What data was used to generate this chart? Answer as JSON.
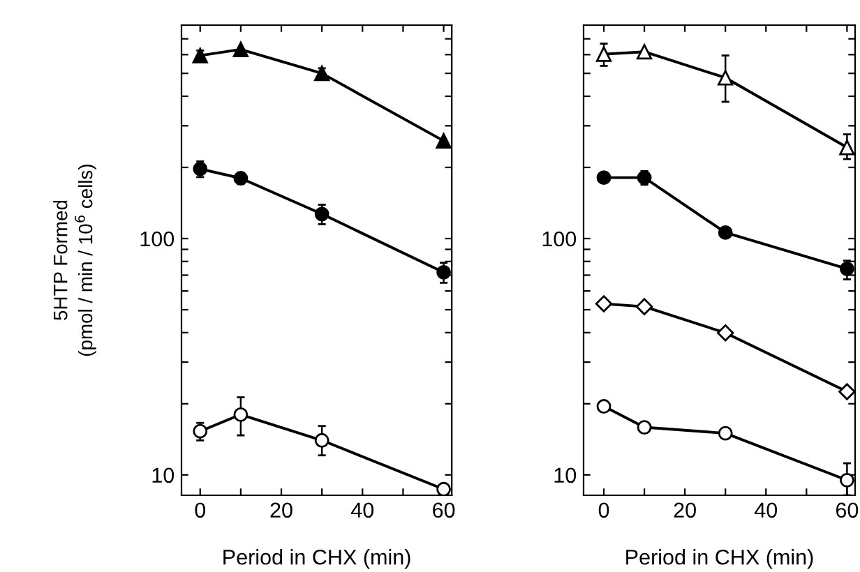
{
  "chart_data": [
    {
      "type": "line",
      "ylabel": "5HTP Formed\n(pmol / min / 10$^{6}$ cells)",
      "xlabel": "Period in CHX (min)",
      "log": "y",
      "grid": false,
      "x": [
        0,
        10,
        30,
        60
      ],
      "xlim": [
        -4.6,
        62
      ],
      "xticks": [
        0,
        {
          "value": 10,
          "label": null
        },
        20,
        {
          "value": 30,
          "label": null
        },
        40,
        {
          "value": 50,
          "label": null
        },
        60
      ],
      "ylim": [
        8.2,
        800
      ],
      "yticks": [
        10,
        {
          "value": 20,
          "label": null
        },
        {
          "value": 30,
          "label": null
        },
        {
          "value": 40,
          "label": null
        },
        {
          "value": 50,
          "label": null
        },
        {
          "value": 60,
          "label": null
        },
        {
          "value": 70,
          "label": null
        },
        {
          "value": 80,
          "label": null
        },
        {
          "value": 90,
          "label": null
        },
        100,
        {
          "value": 200,
          "label": null
        },
        {
          "value": 300,
          "label": null
        },
        {
          "value": 400,
          "label": null
        },
        {
          "value": 500,
          "label": null
        },
        {
          "value": 600,
          "label": null
        },
        {
          "value": 700,
          "label": null
        }
      ],
      "series": [
        {
          "color": "#000000",
          "marker": "triangle",
          "values": [
            595,
            631,
            500,
            259
          ],
          "errors": [
            30,
            null,
            25,
            null
          ]
        },
        {
          "color": "#000000",
          "marker": "circle",
          "values": [
            197,
            180,
            127,
            72
          ],
          "errors": [
            15,
            10,
            12,
            7
          ]
        },
        {
          "color": "#ffffff",
          "marker": "circle",
          "values": [
            15.3,
            18,
            14,
            8.7
          ],
          "errors": [
            1.3,
            [
              14.7,
              21.3
            ],
            [
              12.1,
              16.1
            ],
            null
          ]
        }
      ]
    },
    {
      "type": "line",
      "xlabel": "Period in CHX (min)",
      "log": "y",
      "grid": false,
      "x": [
        0,
        10,
        30,
        60
      ],
      "xlim": [
        -5,
        62
      ],
      "xticks": [
        0,
        {
          "value": 10,
          "label": null
        },
        20,
        {
          "value": 30,
          "label": null
        },
        40,
        {
          "value": 50,
          "label": null
        },
        60
      ],
      "ylim": [
        8.2,
        800
      ],
      "yticks": [
        10,
        {
          "value": 20,
          "label": null
        },
        {
          "value": 30,
          "label": null
        },
        {
          "value": 40,
          "label": null
        },
        {
          "value": 50,
          "label": null
        },
        {
          "value": 60,
          "label": null
        },
        {
          "value": 70,
          "label": null
        },
        {
          "value": 80,
          "label": null
        },
        {
          "value": 90,
          "label": null
        },
        100,
        {
          "value": 200,
          "label": null
        },
        {
          "value": 300,
          "label": null
        },
        {
          "value": 400,
          "label": null
        },
        {
          "value": 500,
          "label": null
        },
        {
          "value": 600,
          "label": null
        },
        {
          "value": 700,
          "label": null
        }
      ],
      "series": [
        {
          "color": "#ffffff",
          "marker": "triangle",
          "values": [
            603,
            617,
            479,
            243
          ],
          "errors": [
            65,
            null,
            [
              379,
              595
            ],
            [
              217,
              276
            ]
          ]
        },
        {
          "color": "#000000",
          "marker": "circle",
          "values": [
            181,
            181,
            106,
            74.5
          ],
          "errors": [
            null,
            12,
            null,
            [
              67.2,
              80.6
            ]
          ]
        },
        {
          "color": "#ffffff",
          "marker": "diamond",
          "values": [
            53,
            51.5,
            39.9,
            22.5
          ]
        },
        {
          "color": "#ffffff",
          "marker": "circle",
          "values": [
            19.5,
            15.9,
            15,
            9.5
          ],
          "errors": [
            null,
            null,
            null,
            [
              8.2,
              11.2
            ]
          ]
        }
      ]
    }
  ]
}
